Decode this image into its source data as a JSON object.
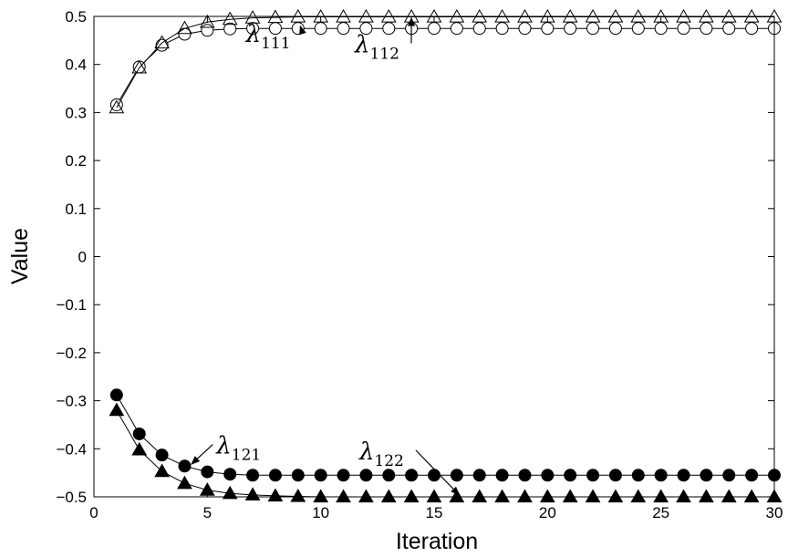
{
  "chart_data": {
    "type": "line",
    "title": "",
    "xlabel": "Iteration",
    "ylabel": "Value",
    "xlim": [
      0,
      30
    ],
    "ylim": [
      -0.5,
      0.5
    ],
    "xticks": [
      0,
      5,
      10,
      15,
      20,
      25,
      30
    ],
    "xtick_labels": [
      "0",
      "5",
      "10",
      "15",
      "20",
      "25",
      "30"
    ],
    "yticks": [
      0.5,
      0.4,
      0.3,
      0.2,
      0.1,
      0,
      -0.1,
      -0.2,
      -0.3,
      -0.4,
      -0.5
    ],
    "ytick_labels": [
      "0.5",
      "0.4",
      "0.3",
      "0.2",
      "0.1",
      "0",
      "−0.1",
      "−0.2",
      "−0.3",
      "−0.4",
      "−0.5"
    ],
    "grid": false,
    "legend": "none",
    "x": [
      1,
      2,
      3,
      4,
      5,
      6,
      7,
      8,
      9,
      10,
      11,
      12,
      13,
      14,
      15,
      16,
      17,
      18,
      19,
      20,
      21,
      22,
      23,
      24,
      25,
      26,
      27,
      28,
      29,
      30
    ],
    "series": [
      {
        "key": "l111",
        "marker": "circle-open",
        "values": [
          0.316,
          0.395,
          0.44,
          0.463,
          0.471,
          0.474,
          0.475,
          0.475,
          0.475,
          0.475,
          0.475,
          0.475,
          0.475,
          0.475,
          0.475,
          0.475,
          0.475,
          0.475,
          0.475,
          0.475,
          0.475,
          0.475,
          0.475,
          0.475,
          0.475,
          0.475,
          0.475,
          0.475,
          0.475,
          0.475
        ]
      },
      {
        "key": "l112",
        "marker": "triangle-open",
        "values": [
          0.31,
          0.393,
          0.445,
          0.475,
          0.488,
          0.494,
          0.497,
          0.498,
          0.499,
          0.499,
          0.499,
          0.499,
          0.499,
          0.499,
          0.499,
          0.499,
          0.499,
          0.499,
          0.499,
          0.499,
          0.499,
          0.499,
          0.499,
          0.499,
          0.499,
          0.499,
          0.499,
          0.499,
          0.499,
          0.499
        ]
      },
      {
        "key": "l121",
        "marker": "circle-filled",
        "values": [
          -0.288,
          -0.369,
          -0.413,
          -0.436,
          -0.448,
          -0.453,
          -0.455,
          -0.455,
          -0.455,
          -0.455,
          -0.455,
          -0.455,
          -0.455,
          -0.455,
          -0.455,
          -0.455,
          -0.455,
          -0.455,
          -0.455,
          -0.455,
          -0.455,
          -0.455,
          -0.455,
          -0.455,
          -0.455,
          -0.455,
          -0.455,
          -0.455,
          -0.455,
          -0.455
        ]
      },
      {
        "key": "l122",
        "marker": "triangle-filled",
        "values": [
          -0.32,
          -0.402,
          -0.447,
          -0.472,
          -0.486,
          -0.493,
          -0.496,
          -0.498,
          -0.499,
          -0.5,
          -0.5,
          -0.5,
          -0.5,
          -0.5,
          -0.5,
          -0.5,
          -0.5,
          -0.5,
          -0.5,
          -0.5,
          -0.5,
          -0.5,
          -0.5,
          -0.5,
          -0.5,
          -0.5,
          -0.5,
          -0.5,
          -0.5,
          -0.5
        ]
      }
    ],
    "annotations": [
      {
        "key": "l111",
        "symbol": "λ",
        "sub": "111",
        "text_at": [
          6.7,
          0.447
        ],
        "arrow_to": [
          9.1,
          0.48
        ]
      },
      {
        "key": "l112",
        "symbol": "λ",
        "sub": "112",
        "text_at": [
          11.5,
          0.425
        ],
        "arrow_to": [
          14.0,
          0.497
        ]
      },
      {
        "key": "l121",
        "symbol": "λ",
        "sub": "121",
        "text_at": [
          5.4,
          -0.41
        ],
        "arrow_to": [
          4.3,
          -0.432
        ]
      },
      {
        "key": "l122",
        "symbol": "λ",
        "sub": "122",
        "text_at": [
          11.7,
          -0.422
        ],
        "arrow_to": [
          16.1,
          -0.496
        ]
      }
    ]
  }
}
